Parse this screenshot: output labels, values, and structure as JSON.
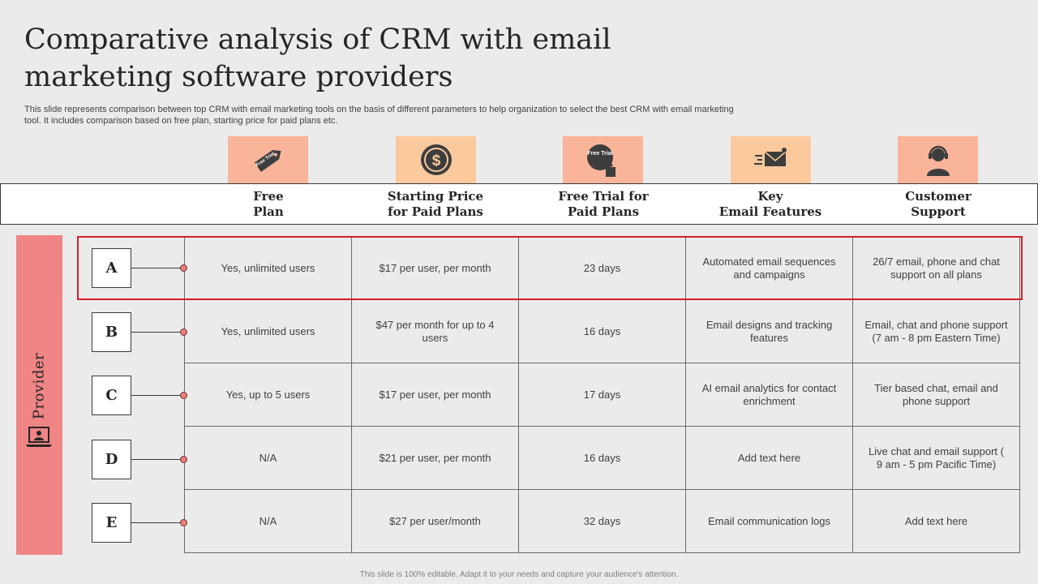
{
  "title": "Comparative analysis of CRM with email marketing software providers",
  "subtitle": "This slide represents comparison between top CRM with email marketing tools on the basis of different parameters to help organization to select the best CRM with email marketing tool. It includes comparison based on free plan, starting price for paid plans etc.",
  "icon_text": {
    "free_trial_tag": "Free Trial",
    "free_trial_button": "Free Trial"
  },
  "columns": [
    {
      "label_line1": "Free",
      "label_line2": "Plan",
      "icon": "free-trial-tag-icon",
      "bg": "#f9b49a"
    },
    {
      "label_line1": "Starting Price",
      "label_line2": "for Paid Plans",
      "icon": "dollar-coin-icon",
      "bg": "#fcc99d"
    },
    {
      "label_line1": "Free Trial for",
      "label_line2": "Paid Plans",
      "icon": "free-trial-click-icon",
      "bg": "#f9b49a"
    },
    {
      "label_line1": "Key",
      "label_line2": "Email Features",
      "icon": "email-send-icon",
      "bg": "#fcc99d"
    },
    {
      "label_line1": "Customer",
      "label_line2": "Support",
      "icon": "support-agent-icon",
      "bg": "#f9b49a"
    }
  ],
  "provider_label": "Provider",
  "rows": [
    {
      "letter": "A",
      "cells": [
        "Yes, unlimited users",
        "$17 per user, per month",
        "23 days",
        "Automated email sequences and campaigns",
        "26/7 email, phone and chat support on all  plans"
      ]
    },
    {
      "letter": "B",
      "cells": [
        "Yes, unlimited users",
        "$47 per month for up to 4 users",
        "16 days",
        "Email designs and tracking features",
        "Email, chat and phone support (7 am - 8 pm Eastern Time)"
      ]
    },
    {
      "letter": "C",
      "cells": [
        "Yes, up to 5 users",
        "$17 per user, per month",
        "17 days",
        "AI email analytics for contact enrichment",
        "Tier based chat, email and phone support"
      ]
    },
    {
      "letter": "D",
      "cells": [
        "N/A",
        "$21 per user, per month",
        "16 days",
        "Add text here",
        "Live chat and email support ( 9 am - 5 pm Pacific Time)"
      ]
    },
    {
      "letter": "E",
      "cells": [
        "N/A",
        "$27 per user/month",
        "32 days",
        "Email communication logs",
        "Add text here"
      ]
    }
  ],
  "highlighted_row": "A",
  "highlight_color": "#d0202a",
  "footer": "This slide is 100% editable. Adapt it to your needs and capture your audience's attention."
}
